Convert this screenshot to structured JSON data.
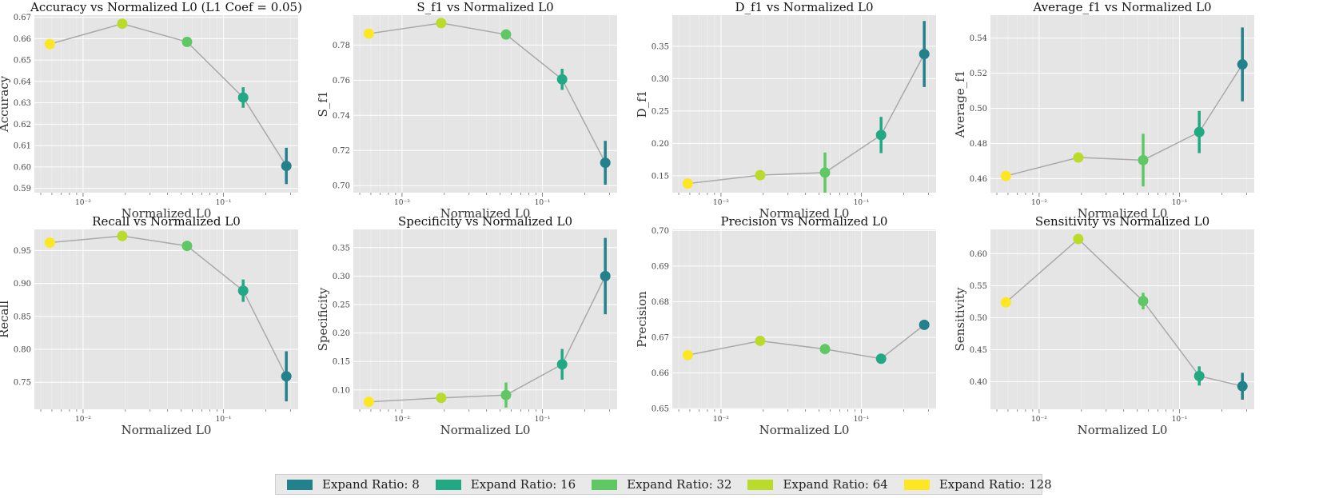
{
  "chart_data": [
    {
      "type": "line",
      "title": "Accuracy vs Normalized L0 (L1 Coef = 0.05)",
      "xlabel": "Normalized L0",
      "ylabel": "Accuracy",
      "xscale": "log",
      "xlim": [
        0.0045,
        0.34
      ],
      "ylim": [
        0.588,
        0.671
      ],
      "yticks": [
        0.59,
        0.6,
        0.61,
        0.62,
        0.63,
        0.64,
        0.65,
        0.66,
        0.67
      ],
      "ytick_labels": [
        "0.59",
        "0.60",
        "0.61",
        "0.62",
        "0.63",
        "0.64",
        "0.65",
        "0.66",
        "0.67"
      ],
      "points": [
        {
          "ratio": 128,
          "x": 0.0058,
          "y": 0.6575,
          "err": 0.0008
        },
        {
          "ratio": 64,
          "x": 0.019,
          "y": 0.667,
          "err": 0.0005
        },
        {
          "ratio": 32,
          "x": 0.055,
          "y": 0.6585,
          "err": 0.0015
        },
        {
          "ratio": 16,
          "x": 0.138,
          "y": 0.6325,
          "err": 0.0048
        },
        {
          "ratio": 8,
          "x": 0.28,
          "y": 0.6005,
          "err": 0.0085
        }
      ]
    },
    {
      "type": "line",
      "title": "S_f1 vs Normalized L0",
      "xlabel": "Normalized L0",
      "ylabel": "S_f1",
      "xscale": "log",
      "xlim": [
        0.0045,
        0.34
      ],
      "ylim": [
        0.696,
        0.797
      ],
      "yticks": [
        0.7,
        0.72,
        0.74,
        0.76,
        0.78
      ],
      "ytick_labels": [
        "0.70",
        "0.72",
        "0.74",
        "0.76",
        "0.78"
      ],
      "points": [
        {
          "ratio": 128,
          "x": 0.0058,
          "y": 0.7865,
          "err": 0.001
        },
        {
          "ratio": 64,
          "x": 0.019,
          "y": 0.7925,
          "err": 0.001
        },
        {
          "ratio": 32,
          "x": 0.055,
          "y": 0.786,
          "err": 0.0015
        },
        {
          "ratio": 16,
          "x": 0.138,
          "y": 0.7605,
          "err": 0.006
        },
        {
          "ratio": 8,
          "x": 0.28,
          "y": 0.713,
          "err": 0.0125
        }
      ]
    },
    {
      "type": "line",
      "title": "D_f1 vs Normalized L0",
      "xlabel": "Normalized L0",
      "ylabel": "D_f1",
      "xscale": "log",
      "xlim": [
        0.0045,
        0.34
      ],
      "ylim": [
        0.124,
        0.398
      ],
      "yticks": [
        0.15,
        0.2,
        0.25,
        0.3,
        0.35
      ],
      "ytick_labels": [
        "0.15",
        "0.20",
        "0.25",
        "0.30",
        "0.35"
      ],
      "points": [
        {
          "ratio": 128,
          "x": 0.0058,
          "y": 0.138,
          "err": 0.003
        },
        {
          "ratio": 64,
          "x": 0.019,
          "y": 0.151,
          "err": 0.003
        },
        {
          "ratio": 32,
          "x": 0.055,
          "y": 0.155,
          "err": 0.031
        },
        {
          "ratio": 16,
          "x": 0.138,
          "y": 0.213,
          "err": 0.028
        },
        {
          "ratio": 8,
          "x": 0.28,
          "y": 0.338,
          "err": 0.051
        }
      ]
    },
    {
      "type": "line",
      "title": "Average_f1 vs Normalized L0",
      "xlabel": "Normalized L0",
      "ylabel": "Average_f1",
      "xscale": "log",
      "xlim": [
        0.0045,
        0.34
      ],
      "ylim": [
        0.452,
        0.553
      ],
      "yticks": [
        0.46,
        0.48,
        0.5,
        0.52,
        0.54
      ],
      "ytick_labels": [
        "0.46",
        "0.48",
        "0.50",
        "0.52",
        "0.54"
      ],
      "points": [
        {
          "ratio": 128,
          "x": 0.0058,
          "y": 0.4615,
          "err": 0.001
        },
        {
          "ratio": 64,
          "x": 0.019,
          "y": 0.472,
          "err": 0.001
        },
        {
          "ratio": 32,
          "x": 0.055,
          "y": 0.4705,
          "err": 0.015
        },
        {
          "ratio": 16,
          "x": 0.138,
          "y": 0.4865,
          "err": 0.012
        },
        {
          "ratio": 8,
          "x": 0.28,
          "y": 0.525,
          "err": 0.021
        }
      ]
    },
    {
      "type": "line",
      "title": "Recall vs Normalized L0",
      "xlabel": "Normalized L0",
      "ylabel": "Recall",
      "xscale": "log",
      "xlim": [
        0.0045,
        0.34
      ],
      "ylim": [
        0.709,
        0.982
      ],
      "yticks": [
        0.75,
        0.8,
        0.85,
        0.9,
        0.95
      ],
      "ytick_labels": [
        "0.75",
        "0.80",
        "0.85",
        "0.90",
        "0.95"
      ],
      "points": [
        {
          "ratio": 128,
          "x": 0.0058,
          "y": 0.962,
          "err": 0.002
        },
        {
          "ratio": 64,
          "x": 0.019,
          "y": 0.972,
          "err": 0.002
        },
        {
          "ratio": 32,
          "x": 0.055,
          "y": 0.957,
          "err": 0.004
        },
        {
          "ratio": 16,
          "x": 0.138,
          "y": 0.889,
          "err": 0.017
        },
        {
          "ratio": 8,
          "x": 0.28,
          "y": 0.759,
          "err": 0.038
        }
      ]
    },
    {
      "type": "line",
      "title": "Specificity vs Normalized L0",
      "xlabel": "Normalized L0",
      "ylabel": "Specificity",
      "xscale": "log",
      "xlim": [
        0.0045,
        0.34
      ],
      "ylim": [
        0.066,
        0.382
      ],
      "yticks": [
        0.1,
        0.15,
        0.2,
        0.25,
        0.3,
        0.35
      ],
      "ytick_labels": [
        "0.10",
        "0.15",
        "0.20",
        "0.25",
        "0.30",
        "0.35"
      ],
      "points": [
        {
          "ratio": 128,
          "x": 0.0058,
          "y": 0.079,
          "err": 0.002
        },
        {
          "ratio": 64,
          "x": 0.019,
          "y": 0.086,
          "err": 0.003
        },
        {
          "ratio": 32,
          "x": 0.055,
          "y": 0.091,
          "err": 0.022
        },
        {
          "ratio": 16,
          "x": 0.138,
          "y": 0.145,
          "err": 0.027
        },
        {
          "ratio": 8,
          "x": 0.28,
          "y": 0.3,
          "err": 0.067
        }
      ]
    },
    {
      "type": "line",
      "title": "Precision vs Normalized L0",
      "xlabel": "Normalized L0",
      "ylabel": "Precision",
      "xscale": "log",
      "xlim": [
        0.0045,
        0.34
      ],
      "ylim": [
        0.6498,
        0.7003
      ],
      "yticks": [
        0.65,
        0.66,
        0.67,
        0.68,
        0.69,
        0.7
      ],
      "ytick_labels": [
        "0.65",
        "0.66",
        "0.67",
        "0.68",
        "0.69",
        "0.70"
      ],
      "points": [
        {
          "ratio": 128,
          "x": 0.0058,
          "y": 0.665,
          "err": 0.0003
        },
        {
          "ratio": 64,
          "x": 0.019,
          "y": 0.669,
          "err": 0.0003
        },
        {
          "ratio": 32,
          "x": 0.055,
          "y": 0.6667,
          "err": 0.0003
        },
        {
          "ratio": 16,
          "x": 0.138,
          "y": 0.664,
          "err": 0.0003
        },
        {
          "ratio": 8,
          "x": 0.28,
          "y": 0.6735,
          "err": 0.0003
        }
      ]
    },
    {
      "type": "line",
      "title": "Sensitivity vs Normalized L0",
      "xlabel": "Normalized L0",
      "ylabel": "Sensitivity",
      "xscale": "log",
      "xlim": [
        0.0045,
        0.34
      ],
      "ylim": [
        0.357,
        0.638
      ],
      "yticks": [
        0.4,
        0.45,
        0.5,
        0.55,
        0.6
      ],
      "ytick_labels": [
        "0.40",
        "0.45",
        "0.50",
        "0.55",
        "0.60"
      ],
      "points": [
        {
          "ratio": 128,
          "x": 0.0058,
          "y": 0.524,
          "err": 0.004
        },
        {
          "ratio": 64,
          "x": 0.019,
          "y": 0.623,
          "err": 0.003
        },
        {
          "ratio": 32,
          "x": 0.055,
          "y": 0.526,
          "err": 0.013
        },
        {
          "ratio": 16,
          "x": 0.138,
          "y": 0.409,
          "err": 0.015
        },
        {
          "ratio": 8,
          "x": 0.28,
          "y": 0.393,
          "err": 0.021
        }
      ]
    }
  ],
  "xticks": {
    "values": [
      0.01,
      0.1
    ],
    "labels": [
      "10⁻²",
      "10⁻¹"
    ]
  },
  "legend": [
    {
      "ratio": 8,
      "label": "Expand Ratio: 8",
      "color": "#23818c"
    },
    {
      "ratio": 16,
      "label": "Expand Ratio: 16",
      "color": "#23a884"
    },
    {
      "ratio": 32,
      "label": "Expand Ratio: 32",
      "color": "#5fc865"
    },
    {
      "ratio": 64,
      "label": "Expand Ratio: 64",
      "color": "#bbdb2c"
    },
    {
      "ratio": 128,
      "label": "Expand Ratio: 128",
      "color": "#fde725"
    }
  ],
  "colors": {
    "panel_bg": "#e5e5e5",
    "grid": "#ffffff",
    "line": "#a9a9a9"
  }
}
